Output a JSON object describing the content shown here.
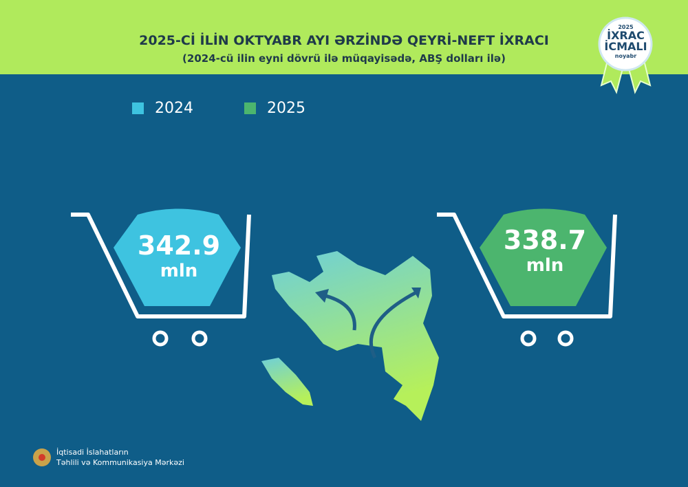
{
  "header": {
    "title": "2025-Cİ İLİN OKTYABR AYI ƏRZİNDƏ QEYRİ-NEFT İXRACI",
    "subtitle": "(2024-cü ilin eyni dövrü ilə müqayisədə, ABŞ dolları ilə)"
  },
  "badge": {
    "year": "2025",
    "line1": "İXRAC",
    "line2": "İCMALI",
    "month": "noyabr"
  },
  "legend": [
    {
      "label": "2024",
      "color": "#3ec3e0"
    },
    {
      "label": "2025",
      "color": "#4cb56e"
    }
  ],
  "values": [
    {
      "number": "342.9",
      "unit": "mln"
    },
    {
      "number": "338.7",
      "unit": "mln"
    }
  ],
  "footer": {
    "line1": "İqtisadi İslahatların",
    "line2": "Təhlili və Kommunikasiya Mərkəzi"
  }
}
